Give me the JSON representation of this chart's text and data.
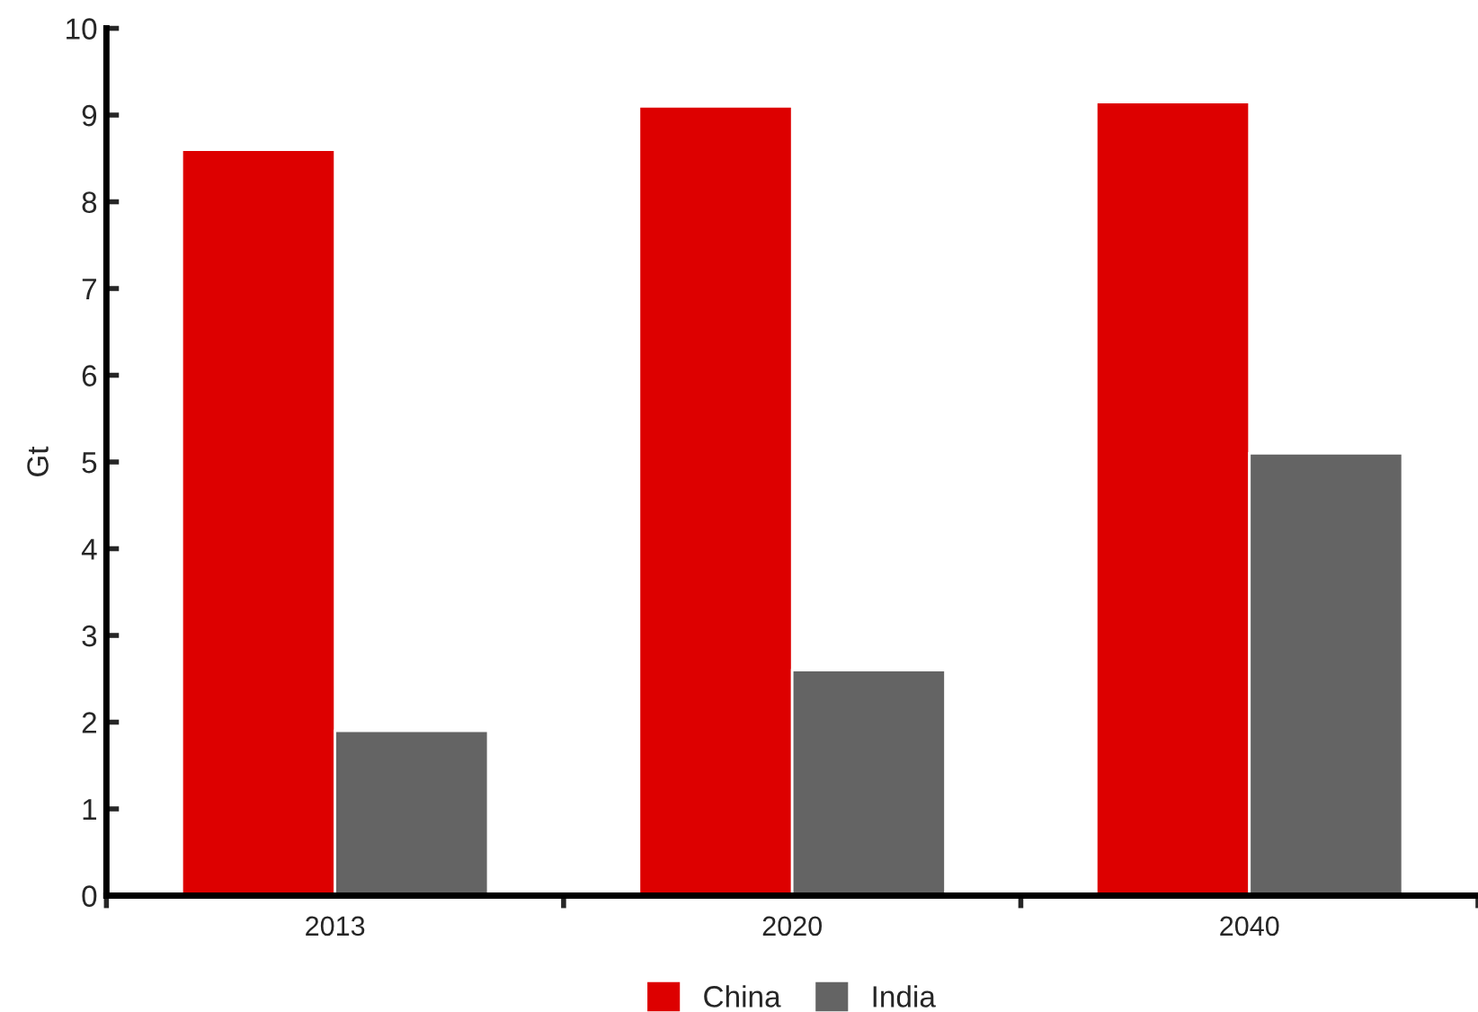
{
  "chart_data": {
    "type": "bar",
    "ylabel": "Gt",
    "categories": [
      "2013",
      "2020",
      "2040"
    ],
    "series": [
      {
        "name": "China",
        "color": "#dd0000",
        "values": [
          8.6,
          9.1,
          9.15
        ]
      },
      {
        "name": "India",
        "color": "#646464",
        "values": [
          1.9,
          2.6,
          5.1
        ]
      }
    ],
    "ylim": [
      0,
      10
    ],
    "yticks": [
      0,
      1,
      2,
      3,
      4,
      5,
      6,
      7,
      8,
      9,
      10
    ],
    "grid": false,
    "legend": "bottom"
  }
}
